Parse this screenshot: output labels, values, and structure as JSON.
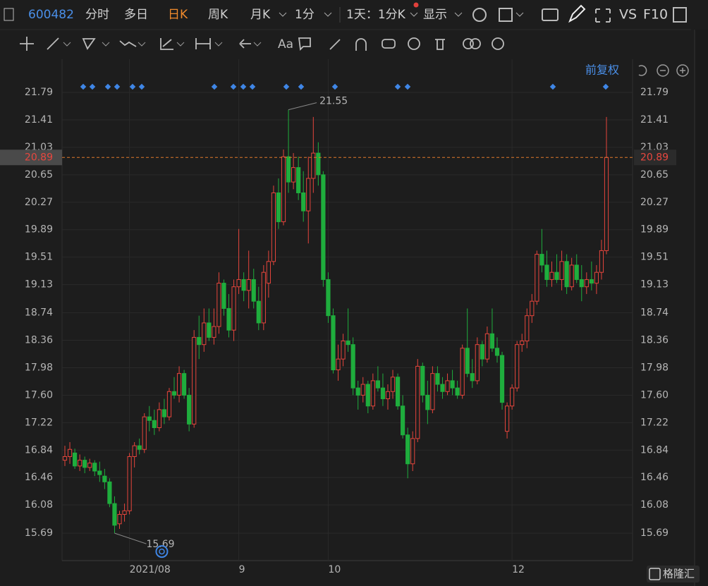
{
  "toolbar": {
    "code": "600482",
    "tabs": [
      "分时",
      "多日",
      "日K",
      "周K",
      "月K",
      "1分"
    ],
    "period": "1天：1分K",
    "display": "显示",
    "vs": "VS",
    "f10": "F10"
  },
  "chart_data": {
    "type": "candlestick",
    "adjust": "前复权",
    "categories": [
      null,
      null,
      null,
      null,
      null,
      null,
      null,
      null,
      null,
      null,
      null,
      null,
      null,
      "2021/08",
      null,
      null,
      null,
      null,
      null,
      null,
      null,
      null,
      null,
      null,
      null,
      null,
      null,
      null,
      null,
      null,
      null,
      null,
      null,
      null,
      null,
      "9",
      null,
      null,
      null,
      null,
      null,
      null,
      null,
      null,
      null,
      null,
      null,
      null,
      null,
      null,
      null,
      null,
      null,
      "10",
      null,
      null,
      null,
      null,
      null,
      null,
      null,
      null,
      null,
      null,
      null,
      null,
      null,
      null,
      null,
      null,
      null,
      null,
      null,
      null,
      null,
      null,
      null,
      null,
      null,
      null,
      null,
      null,
      null,
      null,
      null,
      null,
      null,
      null,
      null,
      null,
      "12",
      null,
      null,
      null,
      null,
      null,
      null,
      null,
      null,
      null,
      null,
      null,
      null,
      null,
      null,
      null,
      null,
      null,
      null,
      null
    ],
    "ohlc": [
      [
        16.7,
        16.9,
        16.62,
        16.75
      ],
      [
        16.75,
        16.95,
        16.65,
        16.85
      ],
      [
        16.8,
        16.86,
        16.58,
        16.62
      ],
      [
        16.62,
        16.78,
        16.55,
        16.7
      ],
      [
        16.7,
        16.75,
        16.52,
        16.6
      ],
      [
        16.6,
        16.72,
        16.55,
        16.66
      ],
      [
        16.66,
        16.7,
        16.48,
        16.55
      ],
      [
        16.55,
        16.68,
        16.4,
        16.5
      ],
      [
        16.48,
        16.58,
        16.3,
        16.4
      ],
      [
        16.4,
        16.45,
        16.05,
        16.1
      ],
      [
        16.1,
        16.2,
        15.69,
        15.8
      ],
      [
        15.82,
        16.0,
        15.75,
        15.95
      ],
      [
        15.95,
        16.1,
        15.85,
        16.0
      ],
      [
        16.0,
        16.8,
        15.95,
        16.75
      ],
      [
        16.75,
        16.95,
        16.6,
        16.9
      ],
      [
        16.9,
        17.0,
        16.78,
        16.85
      ],
      [
        16.85,
        17.35,
        16.8,
        17.3
      ],
      [
        17.3,
        17.45,
        17.1,
        17.25
      ],
      [
        17.25,
        17.4,
        17.05,
        17.15
      ],
      [
        17.15,
        17.5,
        17.1,
        17.4
      ],
      [
        17.4,
        17.55,
        17.2,
        17.3
      ],
      [
        17.3,
        17.7,
        17.25,
        17.65
      ],
      [
        17.65,
        17.85,
        17.55,
        17.6
      ],
      [
        17.6,
        18.0,
        17.5,
        17.9
      ],
      [
        17.9,
        17.95,
        17.55,
        17.6
      ],
      [
        17.6,
        17.7,
        17.1,
        17.2
      ],
      [
        17.2,
        18.5,
        17.15,
        18.4
      ],
      [
        18.4,
        18.7,
        18.1,
        18.3
      ],
      [
        18.3,
        18.8,
        18.2,
        18.6
      ],
      [
        18.6,
        18.8,
        18.35,
        18.4
      ],
      [
        18.4,
        18.8,
        18.3,
        18.55
      ],
      [
        18.55,
        19.3,
        18.45,
        19.15
      ],
      [
        19.15,
        19.2,
        18.7,
        18.8
      ],
      [
        18.8,
        19.0,
        18.4,
        18.5
      ],
      [
        18.5,
        19.2,
        18.35,
        19.1
      ],
      [
        19.1,
        19.9,
        19.0,
        19.2
      ],
      [
        19.2,
        19.3,
        18.9,
        19.05
      ],
      [
        19.05,
        19.6,
        18.8,
        19.2
      ],
      [
        19.2,
        19.35,
        18.8,
        18.9
      ],
      [
        18.9,
        19.1,
        18.5,
        18.6
      ],
      [
        18.6,
        19.4,
        18.5,
        19.3
      ],
      [
        19.15,
        19.6,
        18.95,
        19.45
      ],
      [
        19.45,
        20.5,
        19.4,
        20.4
      ],
      [
        20.4,
        20.6,
        19.9,
        20.0
      ],
      [
        20.0,
        21.0,
        19.95,
        20.9
      ],
      [
        20.9,
        21.55,
        20.4,
        20.55
      ],
      [
        20.55,
        20.95,
        20.45,
        20.75
      ],
      [
        20.75,
        20.9,
        20.3,
        20.4
      ],
      [
        20.4,
        20.7,
        20.0,
        20.15
      ],
      [
        20.15,
        20.9,
        19.7,
        20.6
      ],
      [
        20.6,
        21.45,
        20.4,
        20.95
      ],
      [
        20.95,
        21.1,
        20.5,
        20.65
      ],
      [
        20.65,
        20.7,
        19.1,
        19.2
      ],
      [
        19.2,
        19.3,
        18.6,
        18.7
      ],
      [
        18.7,
        18.8,
        17.9,
        17.95
      ],
      [
        17.95,
        18.3,
        17.8,
        18.1
      ],
      [
        18.1,
        18.45,
        18.0,
        18.35
      ],
      [
        18.35,
        18.8,
        18.2,
        18.3
      ],
      [
        18.3,
        18.4,
        17.6,
        17.7
      ],
      [
        17.7,
        17.8,
        17.4,
        17.6
      ],
      [
        17.6,
        17.85,
        17.5,
        17.75
      ],
      [
        17.75,
        17.8,
        17.35,
        17.45
      ],
      [
        17.45,
        17.9,
        17.4,
        17.8
      ],
      [
        17.8,
        18.0,
        17.65,
        17.7
      ],
      [
        17.7,
        17.9,
        17.45,
        17.55
      ],
      [
        17.55,
        17.75,
        17.4,
        17.65
      ],
      [
        17.65,
        17.95,
        17.55,
        17.85
      ],
      [
        17.85,
        17.9,
        17.4,
        17.45
      ],
      [
        17.45,
        17.6,
        17.0,
        17.05
      ],
      [
        17.05,
        17.15,
        16.45,
        16.65
      ],
      [
        16.65,
        17.1,
        16.55,
        17.0
      ],
      [
        17.0,
        18.1,
        16.95,
        18.0
      ],
      [
        18.0,
        18.05,
        17.5,
        17.6
      ],
      [
        17.6,
        17.8,
        17.2,
        17.4
      ],
      [
        17.4,
        18.0,
        17.35,
        17.9
      ],
      [
        17.9,
        18.0,
        17.65,
        17.75
      ],
      [
        17.75,
        17.85,
        17.55,
        17.65
      ],
      [
        17.65,
        17.9,
        17.6,
        17.8
      ],
      [
        17.8,
        17.95,
        17.6,
        17.7
      ],
      [
        17.7,
        17.8,
        17.55,
        17.6
      ],
      [
        17.6,
        18.3,
        17.55,
        18.25
      ],
      [
        18.25,
        18.8,
        17.85,
        17.9
      ],
      [
        17.9,
        18.1,
        17.7,
        17.8
      ],
      [
        17.8,
        18.4,
        17.75,
        18.3
      ],
      [
        18.3,
        18.35,
        18.0,
        18.1
      ],
      [
        18.1,
        18.55,
        18.05,
        18.45
      ],
      [
        18.45,
        18.8,
        18.2,
        18.25
      ],
      [
        18.25,
        18.4,
        18.05,
        18.15
      ],
      [
        18.15,
        18.2,
        17.4,
        17.5
      ],
      [
        17.1,
        17.5,
        17.0,
        17.45
      ],
      [
        17.45,
        17.75,
        17.4,
        17.7
      ],
      [
        17.7,
        18.35,
        17.65,
        18.3
      ],
      [
        18.3,
        18.45,
        18.2,
        18.35
      ],
      [
        18.35,
        18.8,
        18.25,
        18.7
      ],
      [
        18.7,
        19.0,
        18.6,
        18.9
      ],
      [
        18.9,
        19.6,
        18.85,
        19.55
      ],
      [
        19.55,
        19.9,
        19.3,
        19.4
      ],
      [
        19.4,
        19.6,
        19.1,
        19.2
      ],
      [
        19.2,
        19.45,
        19.1,
        19.3
      ],
      [
        19.3,
        19.55,
        19.15,
        19.2
      ],
      [
        19.2,
        19.6,
        19.05,
        19.45
      ],
      [
        19.45,
        19.55,
        19.0,
        19.1
      ],
      [
        19.1,
        19.5,
        19.05,
        19.4
      ],
      [
        19.4,
        19.55,
        19.15,
        19.2
      ],
      [
        19.2,
        19.4,
        18.9,
        19.1
      ],
      [
        19.1,
        19.3,
        19.0,
        19.2
      ],
      [
        19.2,
        19.45,
        19.05,
        19.15
      ],
      [
        19.15,
        19.4,
        19.0,
        19.3
      ],
      [
        19.3,
        19.75,
        19.2,
        19.6
      ],
      [
        19.6,
        21.45,
        19.55,
        20.89
      ]
    ],
    "ylim": [
      15.33,
      22.21
    ],
    "yticks": [
      15.69,
      16.08,
      16.46,
      16.84,
      17.22,
      {
        "value": 17.6,
        "label": "17.60"
      },
      17.98,
      18.36,
      18.74,
      19.13,
      19.51,
      19.89,
      20.27,
      20.65,
      21.03,
      21.41,
      21.79
    ],
    "up_color": "#e5453c",
    "down_color": "#1fad3d"
  },
  "watermark": "格隆汇"
}
